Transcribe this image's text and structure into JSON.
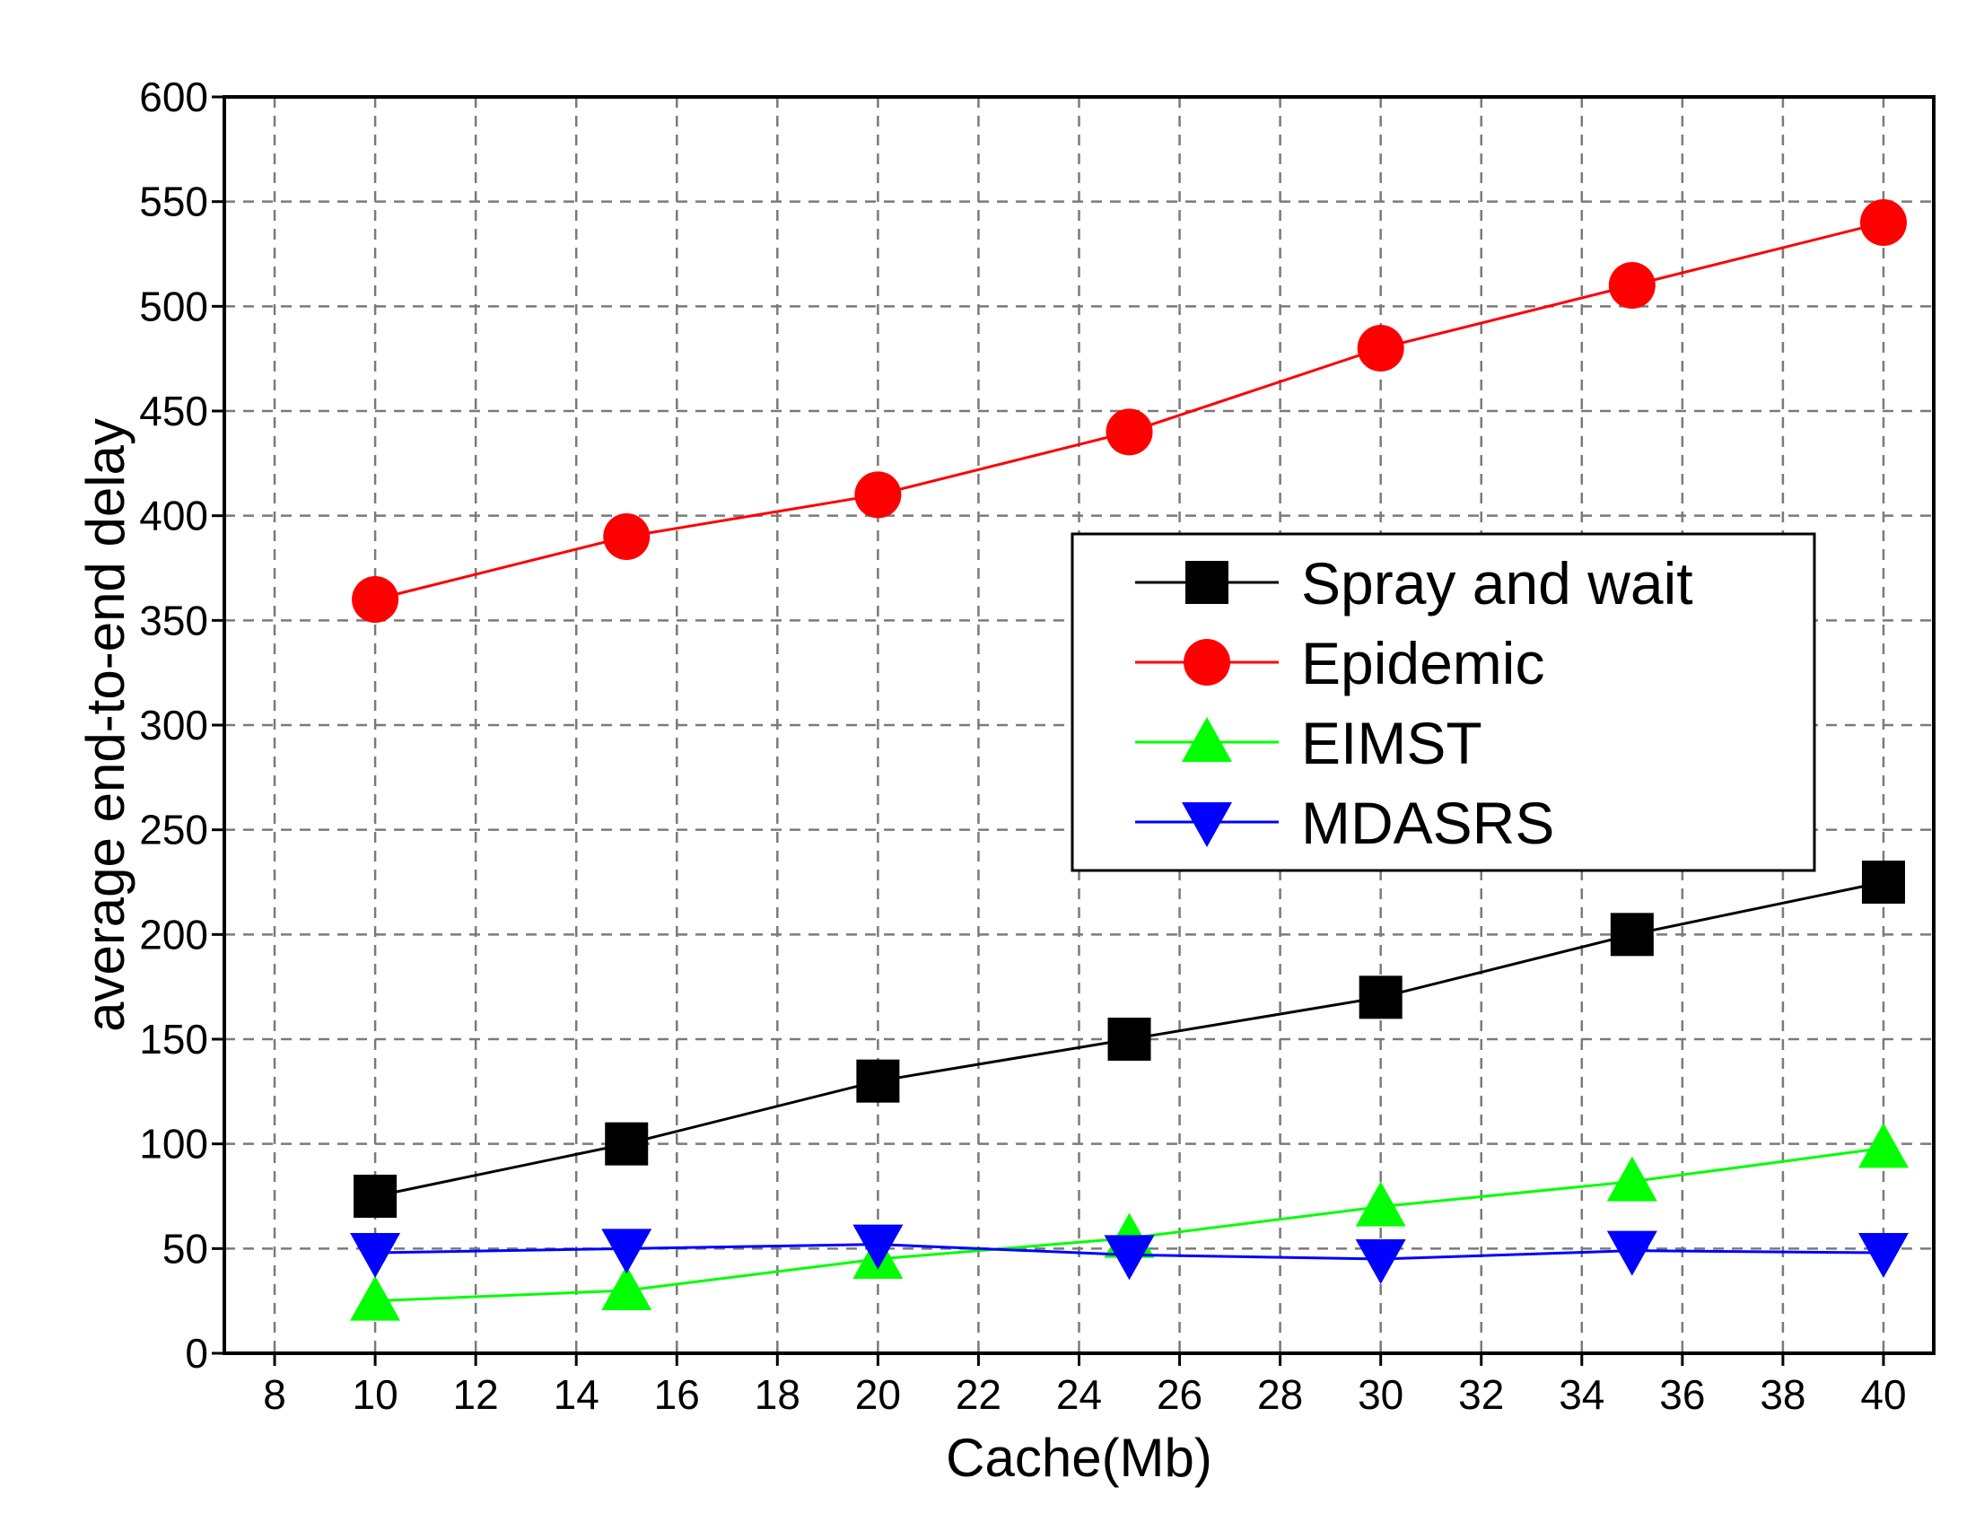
{
  "chart_data": {
    "type": "line",
    "title": "",
    "xlabel": "Cache(Mb)",
    "ylabel": "average end-to-end delay",
    "xlim": [
      7,
      41
    ],
    "ylim": [
      0,
      600
    ],
    "x_ticks": [
      8,
      10,
      12,
      14,
      16,
      18,
      20,
      22,
      24,
      26,
      28,
      30,
      32,
      34,
      36,
      38,
      40
    ],
    "y_ticks": [
      0,
      50,
      100,
      150,
      200,
      250,
      300,
      350,
      400,
      450,
      500,
      550,
      600
    ],
    "grid": true,
    "legend_position": "center-right",
    "x": [
      10,
      15,
      20,
      25,
      30,
      35,
      40
    ],
    "series": [
      {
        "name": "Spray and wait",
        "color": "#000000",
        "marker": "square",
        "values": [
          75,
          100,
          130,
          150,
          170,
          200,
          225
        ]
      },
      {
        "name": "Epidemic",
        "color": "#ff0000",
        "marker": "circle",
        "values": [
          360,
          390,
          410,
          440,
          480,
          510,
          540
        ]
      },
      {
        "name": "EIMST",
        "color": "#00ff00",
        "marker": "triangle-up",
        "values": [
          25,
          30,
          45,
          55,
          70,
          82,
          98
        ]
      },
      {
        "name": "MDASRS",
        "color": "#0000ff",
        "marker": "triangle-down",
        "values": [
          48,
          50,
          52,
          47,
          45,
          49,
          48
        ]
      }
    ]
  }
}
